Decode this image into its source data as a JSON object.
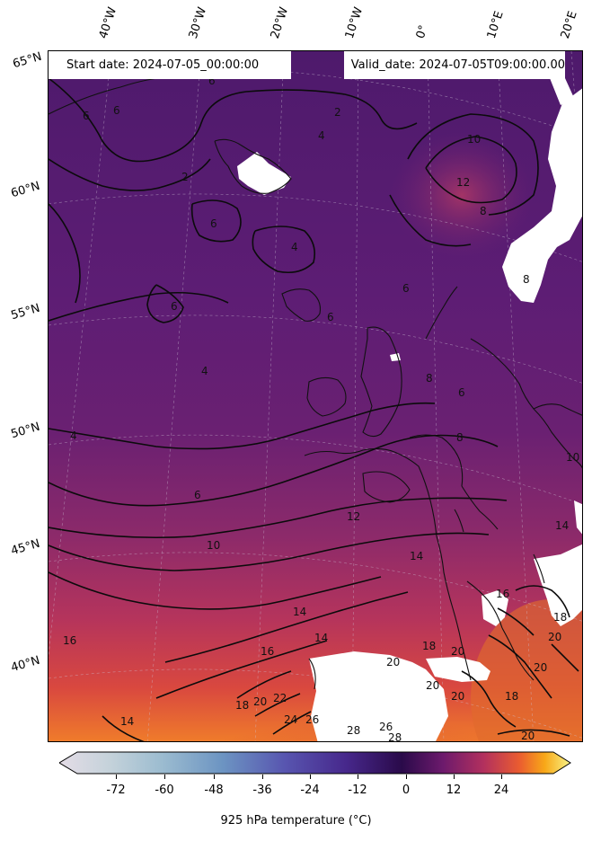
{
  "header": {
    "start_date": "Start date: 2024-07-05_00:00:00",
    "valid_date": "Valid_date: 2024-07-05T09:00:00.00"
  },
  "lon_labels": [
    "40°W",
    "30°W",
    "20°W",
    "10°W",
    "0°",
    "10°E",
    "20°E"
  ],
  "lat_labels": [
    "65°N",
    "60°N",
    "55°N",
    "50°N",
    "45°N",
    "40°N"
  ],
  "colorbar": {
    "label": "925 hPa temperature (°C)",
    "ticks": [
      "-72",
      "-60",
      "-48",
      "-36",
      "-24",
      "-12",
      "0",
      "12",
      "24"
    ],
    "range": [
      -84,
      36
    ],
    "colormap": "inferno-style diverging",
    "colors": [
      "#e2dce4",
      "#9cc0d0",
      "#6f97c0",
      "#5b5fb4",
      "#4a2a8c",
      "#2a0a4a",
      "#6a1a6a",
      "#b03068",
      "#e85a30",
      "#f8a010",
      "#f8f080"
    ]
  },
  "contour_labels": [
    "2",
    "4",
    "6",
    "8",
    "10",
    "12",
    "14",
    "16",
    "18",
    "20",
    "22",
    "24",
    "26",
    "28"
  ],
  "colors": {
    "cold_field": "#5b1c73",
    "mid_field": "#7a2570",
    "warm_field": "#c2364f",
    "hot_field": "#f4a020",
    "land_mask": "#ffffff"
  }
}
